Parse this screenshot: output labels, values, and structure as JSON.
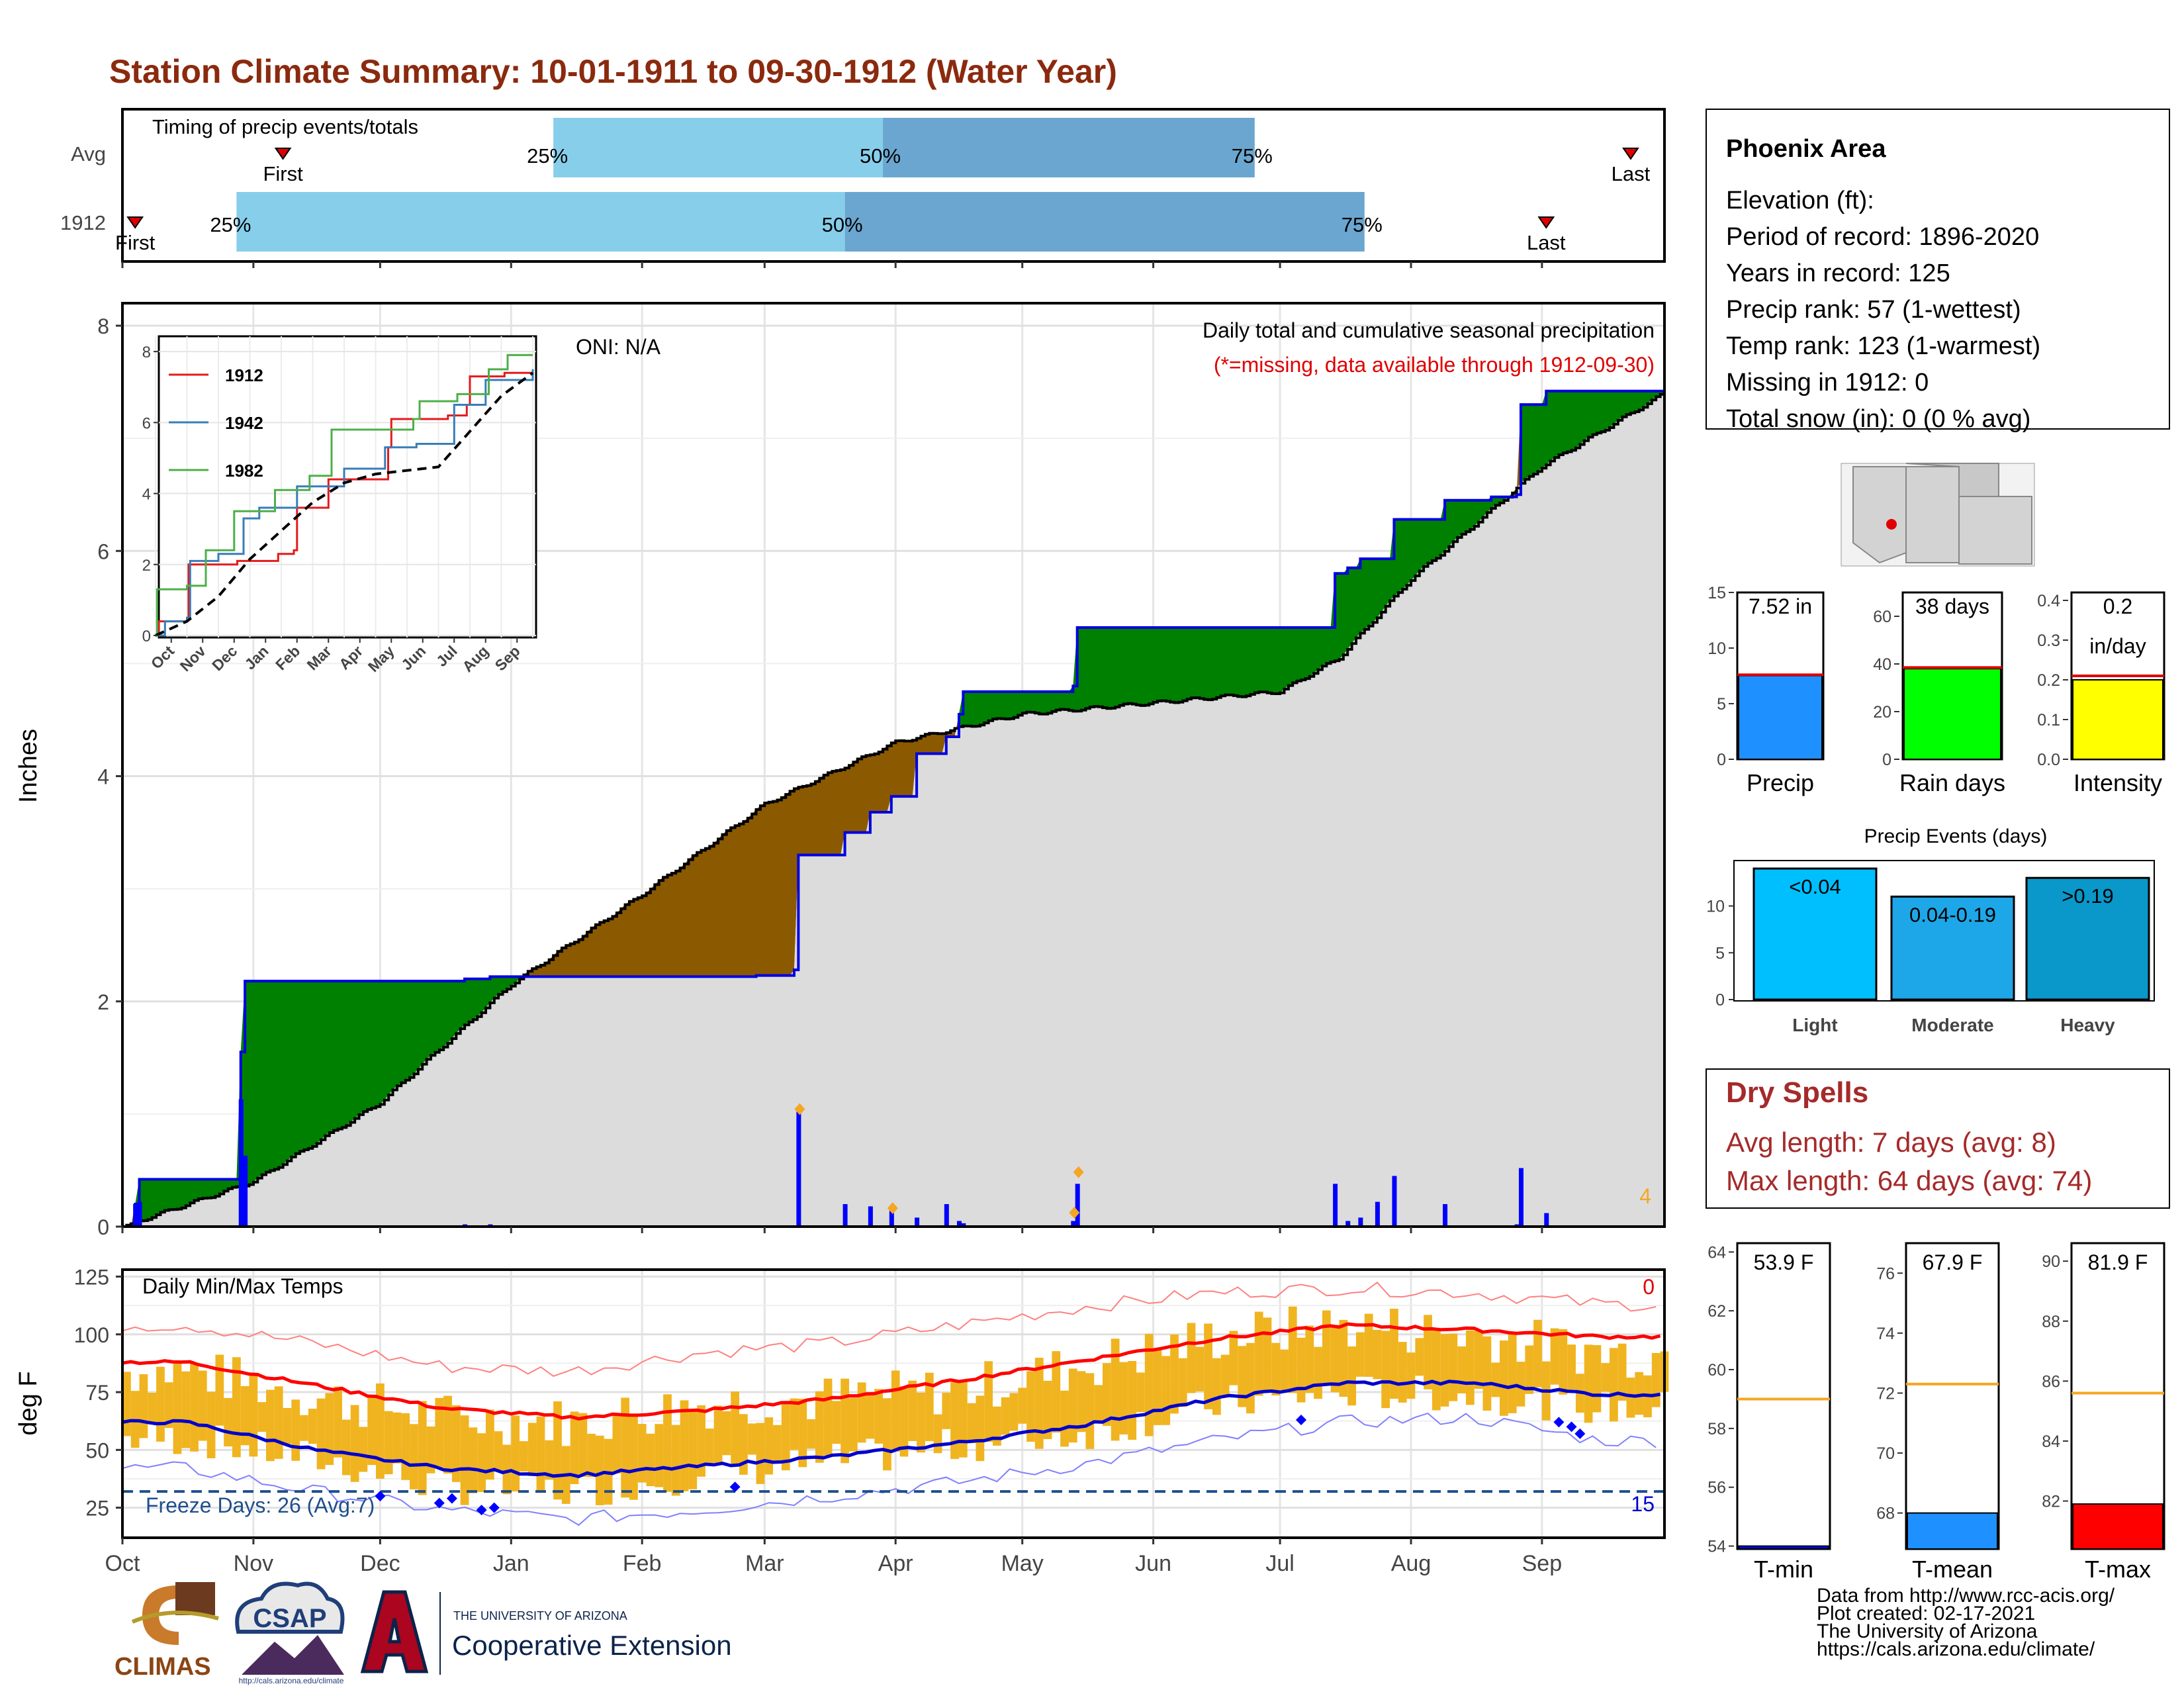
{
  "title": "Station Climate Summary: 10-01-1911 to 09-30-1912 (Water Year)",
  "timing": {
    "title": "Timing of precip events/totals",
    "rows": [
      {
        "label": "Avg",
        "first": "First",
        "last": "Last",
        "p25": "25%",
        "p50": "50%",
        "p75": "75%",
        "first_date": "1911-11-08",
        "last_date": "1912-09-22",
        "p25_date": "1912-01-11",
        "p50_date": "1912-03-29",
        "p75_date": "1912-06-25"
      },
      {
        "label": "1912",
        "first": "First",
        "last": "Last",
        "p25": "25%",
        "p50": "50%",
        "p75": "75%",
        "first_date": "1911-10-04",
        "last_date": "1912-09-02",
        "p25_date": "1911-10-28",
        "p50_date": "1912-03-20",
        "p75_date": "1912-07-21"
      }
    ]
  },
  "precip_panel": {
    "ylabel": "Inches",
    "oni": "ONI: N/A",
    "title": "Daily total and cumulative seasonal precipitation",
    "subtitle": "(*=missing, data available through 1912-09-30)",
    "corner_count": "4",
    "yticks": [
      "0",
      "2",
      "4",
      "6",
      "8"
    ]
  },
  "inset": {
    "legend": [
      "1912",
      "1942",
      "1982"
    ],
    "colors": [
      "#e41a1c",
      "#377eb8",
      "#4daf4a"
    ],
    "yticks": [
      "0",
      "2",
      "4",
      "6",
      "8"
    ],
    "xticks": [
      "Oct",
      "Nov",
      "Dec",
      "Jan",
      "Feb",
      "Mar",
      "Apr",
      "May",
      "Jun",
      "Jul",
      "Aug",
      "Sep"
    ]
  },
  "temp_panel": {
    "ylabel": "deg F",
    "title": "Daily Min/Max Temps",
    "corner_hot": "0",
    "corner_cold": "15",
    "freeze": "Freeze Days: 26 (Avg:7)",
    "yticks": [
      "25",
      "50",
      "75",
      "100",
      "125"
    ]
  },
  "months": [
    "Oct",
    "Nov",
    "Dec",
    "Jan",
    "Feb",
    "Mar",
    "Apr",
    "May",
    "Jun",
    "Jul",
    "Aug",
    "Sep"
  ],
  "info": {
    "station": "Phoenix Area",
    "lines": [
      "Elevation (ft):",
      "Period of record: 1896-2020",
      "Years in record: 125",
      "Precip rank: 57 (1-wettest)",
      "Temp rank: 123 (1-warmest)",
      "Missing in 1912: 0",
      "Total snow (in): 0 (0 % avg)"
    ]
  },
  "mini_bars": [
    {
      "label": "Precip",
      "value_text": "7.52 in",
      "value": 7.52,
      "avg": 7.6,
      "max": 15,
      "ticks": [
        "0",
        "5",
        "10",
        "15"
      ],
      "color": "#1e90ff"
    },
    {
      "label": "Rain days",
      "value_text": "38 days",
      "value": 38,
      "avg": 38.5,
      "max": 70,
      "ticks": [
        "0",
        "20",
        "40",
        "60"
      ],
      "color": "#00ff00"
    },
    {
      "label": "Intensity",
      "value_text": "0.2",
      "value_text2": "in/day",
      "value": 0.2,
      "avg": 0.21,
      "max": 0.42,
      "ticks": [
        "0.0",
        "0.1",
        "0.2",
        "0.3",
        "0.4"
      ],
      "color": "#ffff00"
    }
  ],
  "events": {
    "title": "Precip Events (days)",
    "categories": [
      "Light",
      "Moderate",
      "Heavy"
    ],
    "values": [
      14,
      11,
      13
    ],
    "labels": [
      "<0.04",
      "0.04-0.19",
      ">0.19"
    ],
    "colors": [
      "#00bfff",
      "#1ea7e8",
      "#0a97c9"
    ],
    "ticks": [
      "0",
      "5",
      "10"
    ]
  },
  "dry_spells": {
    "title": "Dry Spells",
    "avg": "Avg length: 7 days (avg: 8)",
    "max": "Max length: 64 days (avg: 74)"
  },
  "temp_bars": [
    {
      "label": "T-min",
      "value_text": "53.9 F",
      "value": 54.0,
      "avg": 59.0,
      "lo": 53.9,
      "hi": 64.3,
      "ticks": [
        "54",
        "56",
        "58",
        "60",
        "62",
        "64"
      ],
      "color": "#0000ff"
    },
    {
      "label": "T-mean",
      "value_text": "67.9 F",
      "value": 68.0,
      "avg": 72.3,
      "lo": 66.8,
      "hi": 77.0,
      "ticks": [
        "68",
        "70",
        "72",
        "74",
        "76"
      ],
      "color": "#1e90ff"
    },
    {
      "label": "T-max",
      "value_text": "81.9 F",
      "value": 81.9,
      "avg": 85.6,
      "lo": 80.4,
      "hi": 90.6,
      "ticks": [
        "82",
        "84",
        "86",
        "88",
        "90"
      ],
      "color": "#ff0000"
    }
  ],
  "footer": {
    "lines": [
      "Data from http://www.rcc-acis.org/",
      "Plot created: 02-17-2021",
      "The University of Arizona",
      "https://cals.arizona.edu/climate/"
    ],
    "climas": "CLIMAS",
    "csap": "CSAP",
    "csap_url": "http://cals.arizona.edu/climate",
    "ua_small": "THE UNIVERSITY OF ARIZONA",
    "ua_big": "Cooperative Extension"
  },
  "chart_data": [
    {
      "type": "area",
      "title": "Daily total and cumulative seasonal precipitation",
      "ylabel": "Inches",
      "ylim": [
        0,
        8.2
      ],
      "x_range": [
        "1911-10-01",
        "1912-09-30"
      ],
      "series_1912_cumulative": [
        [
          "1911-10-01",
          0.0
        ],
        [
          "1911-10-04",
          0.2
        ],
        [
          "1911-10-05",
          0.42
        ],
        [
          "1911-10-28",
          0.42
        ],
        [
          "1911-10-29",
          1.55
        ],
        [
          "1911-10-30",
          2.18
        ],
        [
          "1911-12-20",
          2.18
        ],
        [
          "1911-12-21",
          2.2
        ],
        [
          "1911-12-27",
          2.22
        ],
        [
          "1912-02-27",
          2.22
        ],
        [
          "1912-02-28",
          2.23
        ],
        [
          "1912-03-08",
          2.28
        ],
        [
          "1912-03-09",
          3.3
        ],
        [
          "1912-03-20",
          3.5
        ],
        [
          "1912-03-26",
          3.68
        ],
        [
          "1912-03-31",
          3.82
        ],
        [
          "1912-04-06",
          4.2
        ],
        [
          "1912-04-13",
          4.35
        ],
        [
          "1912-04-16",
          4.55
        ],
        [
          "1912-04-17",
          4.75
        ],
        [
          "1912-05-13",
          4.8
        ],
        [
          "1912-05-14",
          5.32
        ],
        [
          "1912-07-13",
          5.32
        ],
        [
          "1912-07-14",
          5.8
        ],
        [
          "1912-07-17",
          5.85
        ],
        [
          "1912-07-20",
          5.93
        ],
        [
          "1912-07-28",
          6.28
        ],
        [
          "1912-08-09",
          6.45
        ],
        [
          "1912-08-20",
          6.48
        ],
        [
          "1912-08-26",
          6.5
        ],
        [
          "1912-08-27",
          7.3
        ],
        [
          "1912-09-02",
          7.42
        ],
        [
          "1912-09-30",
          7.42
        ]
      ],
      "series_avg_cumulative": [
        [
          "1911-10-01",
          0.0
        ],
        [
          "1911-11-01",
          0.4
        ],
        [
          "1911-12-01",
          1.1
        ],
        [
          "1912-01-01",
          2.15
        ],
        [
          "1912-02-01",
          2.95
        ],
        [
          "1912-03-01",
          3.75
        ],
        [
          "1912-04-01",
          4.3
        ],
        [
          "1912-05-01",
          4.55
        ],
        [
          "1912-06-01",
          4.65
        ],
        [
          "1912-07-01",
          4.75
        ],
        [
          "1912-07-15",
          5.05
        ],
        [
          "1912-08-01",
          5.75
        ],
        [
          "1912-09-01",
          6.75
        ],
        [
          "1912-09-30",
          7.4
        ]
      ],
      "daily_precip": [
        [
          "1911-10-04",
          0.2
        ],
        [
          "1911-10-05",
          0.22
        ],
        [
          "1911-10-29",
          1.13
        ],
        [
          "1911-10-30",
          0.63
        ],
        [
          "1911-12-21",
          0.02
        ],
        [
          "1911-12-27",
          0.02
        ],
        [
          "1912-02-28",
          0.01
        ],
        [
          "1912-03-09",
          1.02
        ],
        [
          "1912-03-20",
          0.2
        ],
        [
          "1912-03-26",
          0.18
        ],
        [
          "1912-03-31",
          0.14
        ],
        [
          "1912-04-06",
          0.08
        ],
        [
          "1912-04-13",
          0.2
        ],
        [
          "1912-04-16",
          0.05
        ],
        [
          "1912-04-17",
          0.03
        ],
        [
          "1912-05-13",
          0.05
        ],
        [
          "1912-05-14",
          0.38
        ],
        [
          "1912-07-14",
          0.38
        ],
        [
          "1912-07-17",
          0.05
        ],
        [
          "1912-07-20",
          0.08
        ],
        [
          "1912-07-24",
          0.22
        ],
        [
          "1912-07-28",
          0.45
        ],
        [
          "1912-08-09",
          0.2
        ],
        [
          "1912-08-26",
          0.02
        ],
        [
          "1912-08-27",
          0.52
        ],
        [
          "1912-09-02",
          0.12
        ]
      ]
    },
    {
      "type": "line",
      "title": "inset cumulative precipitation",
      "ylim": [
        0,
        8
      ],
      "series": [
        {
          "name": "1912",
          "x": [
            0,
            0.1,
            1.0,
            1.05,
            2.6,
            3.9,
            4.4,
            4.5,
            5.5,
            7.4,
            7.5,
            9.3,
            9.9,
            10.0,
            11.1,
            12.0
          ],
          "y": [
            0,
            0.4,
            0.5,
            2.0,
            2.1,
            2.3,
            2.4,
            3.6,
            4.4,
            5.3,
            6.1,
            6.2,
            6.5,
            7.3,
            7.4,
            7.5
          ]
        },
        {
          "name": "1942",
          "x": [
            0,
            0.3,
            1.0,
            1.1,
            2.0,
            2.8,
            3.3,
            4.5,
            6.0,
            7.3,
            8.3,
            9.5,
            10.5,
            12.0
          ],
          "y": [
            0,
            0.4,
            0.5,
            2.1,
            2.3,
            3.3,
            3.6,
            4.2,
            4.7,
            5.3,
            5.4,
            6.5,
            7.2,
            7.5
          ]
        },
        {
          "name": "1982",
          "x": [
            0,
            0.05,
            1.0,
            1.6,
            2.5,
            3.8,
            4.9,
            5.6,
            8.2,
            8.4,
            9.6,
            10.6,
            11.2,
            12.0
          ],
          "y": [
            0,
            1.3,
            1.4,
            2.4,
            3.5,
            4.1,
            4.5,
            5.8,
            6.1,
            6.6,
            6.8,
            7.5,
            7.9,
            7.9
          ]
        },
        {
          "name": "avg",
          "x": [
            0,
            1,
            2,
            3,
            4,
            5,
            6,
            7,
            8,
            9,
            10,
            11,
            12
          ],
          "y": [
            0,
            0.4,
            1.1,
            2.15,
            2.95,
            3.75,
            4.3,
            4.55,
            4.65,
            4.75,
            5.75,
            6.75,
            7.4
          ]
        }
      ]
    },
    {
      "type": "line",
      "title": "Daily Min/Max Temps",
      "ylabel": "deg F",
      "ylim": [
        12,
        128
      ],
      "months": [
        "Oct",
        "Nov",
        "Dec",
        "Jan",
        "Feb",
        "Mar",
        "Apr",
        "May",
        "Jun",
        "Jul",
        "Aug",
        "Sep"
      ],
      "avg_max_monthly": [
        88,
        78,
        68,
        64,
        67,
        72,
        80,
        89,
        98,
        104,
        102,
        99
      ],
      "avg_min_monthly": [
        62,
        50,
        42,
        39,
        43,
        47,
        53,
        61,
        72,
        79,
        79,
        74
      ],
      "record_max_monthly": [
        104,
        96,
        86,
        84,
        92,
        96,
        104,
        112,
        118,
        120,
        118,
        113
      ],
      "record_min_monthly": [
        42,
        32,
        24,
        20,
        24,
        30,
        36,
        44,
        54,
        62,
        64,
        54
      ],
      "actual_max_monthly": [
        84,
        73,
        64,
        62,
        70,
        72,
        76,
        87,
        99,
        104,
        100,
        92
      ],
      "actual_min_monthly": [
        55,
        46,
        34,
        32,
        40,
        45,
        52,
        58,
        70,
        75,
        74,
        68
      ],
      "freeze_line": 32
    }
  ]
}
